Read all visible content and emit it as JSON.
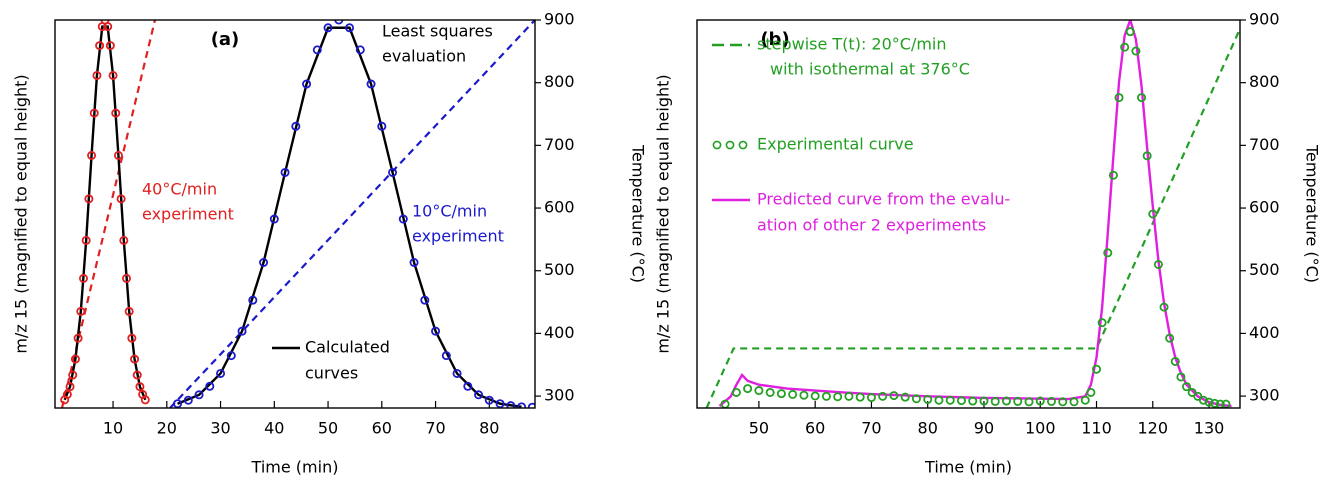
{
  "chart_data": [
    {
      "type": "line",
      "title": "(a)",
      "xlabel": "Time  (min)",
      "ylabel": "m/z 15  (magnified to equal height)",
      "y2label": "Temperature  (°C)",
      "xlim": [
        -0.8,
        88.5
      ],
      "xticks": [
        10,
        20,
        30,
        40,
        50,
        60,
        70,
        80
      ],
      "ylim": [
        0,
        1
      ],
      "y2lim": [
        281,
        900
      ],
      "y2ticks": [
        300,
        400,
        500,
        600,
        700,
        800,
        900
      ],
      "annotations": [
        {
          "lines": [
            "Least squares",
            "evaluation"
          ],
          "color": "#000000"
        },
        {
          "lines": [
            "40°C/min",
            "experiment"
          ],
          "color": "#e02020"
        },
        {
          "lines": [
            "10°C/min",
            "experiment"
          ],
          "color": "#1a1acc"
        }
      ],
      "series": [
        {
          "style": "markers",
          "color": "#e02020",
          "x": [
            1,
            1.5,
            2,
            2.5,
            3,
            3.5,
            4,
            4.5,
            5,
            5.5,
            6,
            6.5,
            7,
            7.5,
            8,
            8.5,
            9,
            9.5,
            10,
            10.5,
            11,
            11.5,
            12,
            12.5,
            13,
            13.5,
            14,
            14.5,
            15,
            15.5,
            16
          ],
          "values": [
            0.021,
            0.035,
            0.055,
            0.085,
            0.126,
            0.18,
            0.249,
            0.334,
            0.432,
            0.539,
            0.651,
            0.76,
            0.857,
            0.934,
            0.983,
            1,
            0.983,
            0.934,
            0.857,
            0.76,
            0.651,
            0.539,
            0.432,
            0.334,
            0.249,
            0.18,
            0.126,
            0.085,
            0.055,
            0.035,
            0.021
          ]
        },
        {
          "style": "markers",
          "color": "#1a1acc",
          "x": [
            22,
            24,
            26,
            28,
            30,
            32,
            34,
            36,
            38,
            40,
            42,
            44,
            46,
            48,
            50,
            52,
            54,
            56,
            58,
            60,
            62,
            64,
            66,
            68,
            70,
            72,
            74,
            76,
            78,
            80,
            82,
            84,
            86,
            88
          ],
          "values": [
            0.011,
            0.02,
            0.034,
            0.056,
            0.089,
            0.135,
            0.198,
            0.278,
            0.375,
            0.487,
            0.607,
            0.726,
            0.835,
            0.923,
            0.98,
            1,
            0.98,
            0.923,
            0.835,
            0.726,
            0.607,
            0.487,
            0.375,
            0.278,
            0.198,
            0.135,
            0.089,
            0.056,
            0.034,
            0.02,
            0.011,
            0.006,
            0.003,
            0.002
          ]
        },
        {
          "style": "line",
          "color": "#000000",
          "name": [
            "Calculated",
            "curves"
          ],
          "x": [
            1,
            2,
            3,
            4,
            5,
            6,
            7,
            8,
            9,
            10,
            11,
            12,
            13,
            14,
            15,
            16,
            19,
            22,
            26,
            30,
            34,
            38,
            42,
            46,
            50,
            54,
            58,
            62,
            66,
            70,
            74,
            78,
            82,
            86
          ],
          "values": [
            0.021,
            0.055,
            0.126,
            0.249,
            0.432,
            0.651,
            0.857,
            0.983,
            0.983,
            0.857,
            0.651,
            0.432,
            0.249,
            0.126,
            0.055,
            0.021,
            null,
            0.011,
            0.034,
            0.089,
            0.198,
            0.375,
            0.607,
            0.835,
            0.98,
            0.98,
            0.835,
            0.607,
            0.375,
            0.198,
            0.089,
            0.034,
            0.011,
            0.003
          ]
        },
        {
          "style": "dashed",
          "axis": "y2",
          "color": "#e02020",
          "x": [
            0.5,
            17.8
          ],
          "values": [
            281,
            900
          ]
        },
        {
          "style": "dashed",
          "axis": "y2",
          "color": "#1a1acc",
          "x": [
            20.6,
            88.5
          ],
          "values": [
            281,
            900
          ]
        }
      ]
    },
    {
      "type": "line",
      "title": "(b)",
      "xlabel": "Time  (min)",
      "ylabel": "m/z 15  (magnified to equal height)",
      "y2label": "Temperature  (°C)",
      "xlim": [
        39,
        135.5
      ],
      "xticks": [
        50,
        60,
        70,
        80,
        90,
        100,
        110,
        120,
        130
      ],
      "ylim": [
        0,
        1
      ],
      "y2lim": [
        281,
        900
      ],
      "y2ticks": [
        300,
        400,
        500,
        600,
        700,
        800,
        900
      ],
      "annotations": [],
      "series": [
        {
          "style": "dashed",
          "axis": "y2",
          "color": "#22a022",
          "name": [
            "stepwise T(t):  20°C/min",
            "with isothermal at 376°C"
          ],
          "x": [
            40.7,
            45.5,
            110,
            135.5
          ],
          "values": [
            281,
            376,
            376,
            886
          ]
        },
        {
          "style": "markers",
          "color": "#22a022",
          "name": [
            "Experimental curve"
          ],
          "x": [
            44,
            46,
            48,
            50,
            52,
            54,
            56,
            58,
            60,
            62,
            64,
            66,
            68,
            70,
            72,
            74,
            76,
            78,
            80,
            82,
            84,
            86,
            88,
            90,
            92,
            94,
            96,
            98,
            100,
            102,
            104,
            106,
            108,
            109,
            110,
            111,
            112,
            113,
            114,
            115,
            116,
            117,
            118,
            119,
            120,
            121,
            122,
            123,
            124,
            125,
            126,
            127,
            128,
            129,
            130,
            131,
            132,
            133
          ],
          "values": [
            0.01,
            0.04,
            0.05,
            0.045,
            0.04,
            0.037,
            0.035,
            0.033,
            0.031,
            0.03,
            0.029,
            0.03,
            0.028,
            0.027,
            0.03,
            0.032,
            0.028,
            0.024,
            0.022,
            0.02,
            0.02,
            0.019,
            0.018,
            0.018,
            0.017,
            0.018,
            0.017,
            0.016,
            0.018,
            0.017,
            0.016,
            0.016,
            0.02,
            0.04,
            0.1,
            0.22,
            0.4,
            0.6,
            0.8,
            0.93,
            0.97,
            0.92,
            0.8,
            0.65,
            0.5,
            0.37,
            0.26,
            0.18,
            0.12,
            0.08,
            0.055,
            0.04,
            0.03,
            0.02,
            0.015,
            0.012,
            0.01,
            0.01
          ]
        },
        {
          "style": "line",
          "color": "#e020e0",
          "name": [
            "Predicted curve from the evalu-",
            "ation of other 2 experiments"
          ],
          "x": [
            43,
            45,
            46,
            47,
            48,
            50,
            55,
            60,
            65,
            70,
            75,
            80,
            85,
            90,
            95,
            100,
            105,
            108,
            109,
            110,
            111,
            112,
            113,
            114,
            115,
            116,
            117,
            118,
            119,
            120,
            121,
            122,
            123,
            124,
            125,
            126,
            128,
            130,
            132,
            134
          ],
          "values": [
            0.005,
            0.03,
            0.06,
            0.085,
            0.07,
            0.06,
            0.05,
            0.045,
            0.04,
            0.036,
            0.033,
            0.03,
            0.028,
            0.026,
            0.025,
            0.024,
            0.023,
            0.03,
            0.06,
            0.13,
            0.26,
            0.45,
            0.65,
            0.84,
            0.96,
            1.0,
            0.95,
            0.83,
            0.67,
            0.52,
            0.38,
            0.27,
            0.19,
            0.13,
            0.09,
            0.06,
            0.03,
            0.015,
            0.008,
            0.005
          ]
        }
      ]
    }
  ]
}
